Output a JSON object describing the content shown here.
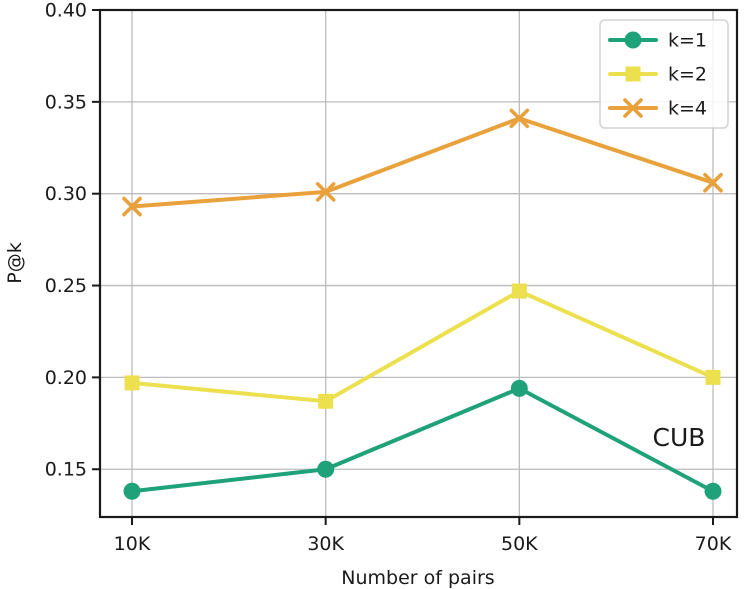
{
  "chart_data": {
    "type": "line",
    "title": "",
    "xlabel": "Number of pairs",
    "ylabel": "P@k",
    "categories": [
      "10K",
      "30K",
      "50K",
      "70K"
    ],
    "series": [
      {
        "name": "k=1",
        "marker": "circle",
        "color": "#1fa179",
        "values": [
          0.138,
          0.15,
          0.194,
          0.138
        ]
      },
      {
        "name": "k=2",
        "marker": "square",
        "color": "#ede04f",
        "values": [
          0.197,
          0.187,
          0.247,
          0.2
        ]
      },
      {
        "name": "k=4",
        "marker": "x",
        "color": "#e9a13c",
        "values": [
          0.293,
          0.301,
          0.341,
          0.306
        ]
      }
    ],
    "yticks": [
      0.15,
      0.2,
      0.25,
      0.3,
      0.35,
      0.4
    ],
    "ylim": [
      0.124,
      0.4
    ],
    "grid": true,
    "legend_position": "upper right",
    "annotation": {
      "text": "CUB"
    }
  },
  "colors": {
    "grid": "#bcbcbc",
    "axis": "#1a1a1a",
    "legend_border": "#d2d2d2",
    "background": "#ffffff"
  }
}
